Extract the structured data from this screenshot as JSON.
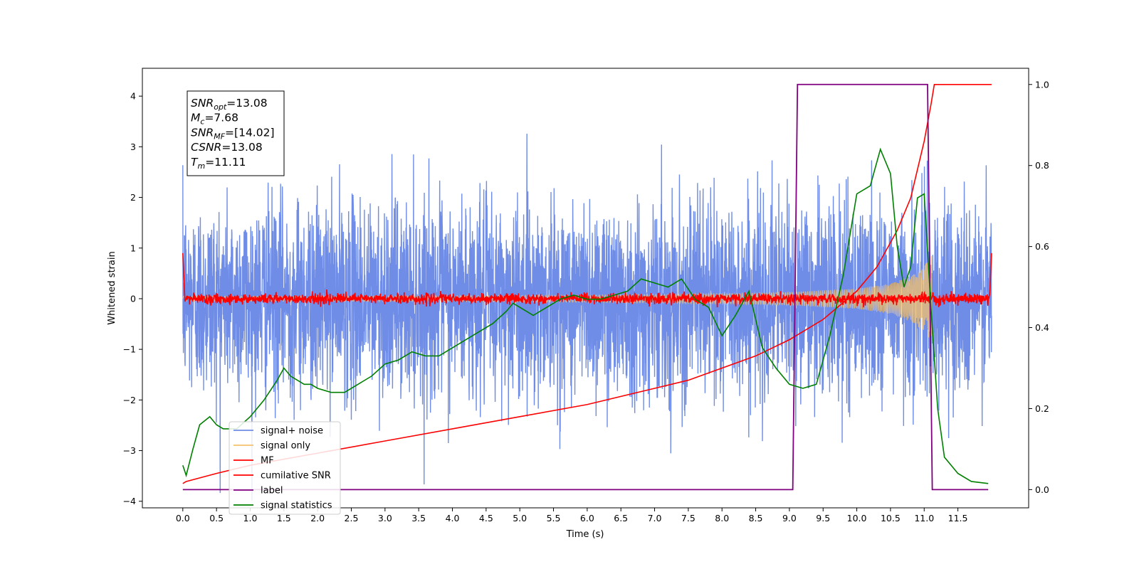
{
  "chart_data": {
    "type": "line",
    "xlabel": "Time (s)",
    "ylabel": "Whitened strain",
    "xlim": [
      -0.6,
      12.55
    ],
    "ylim": [
      -4.13,
      4.55
    ],
    "y2lim": [
      -0.045,
      1.04
    ],
    "x_ticks": [
      0.0,
      0.5,
      1.0,
      1.5,
      2.0,
      2.5,
      3.0,
      3.5,
      4.0,
      4.5,
      5.0,
      5.5,
      6.0,
      6.5,
      7.0,
      7.5,
      8.0,
      8.5,
      9.0,
      9.5,
      10.0,
      10.5,
      11.0,
      11.5
    ],
    "x_tick_labels": [
      "0.0",
      "0.5",
      "1.0",
      "1.5",
      "2.0",
      "2.5",
      "3.0",
      "3.5",
      "4.0",
      "4.5",
      "5.0",
      "5.5",
      "6.0",
      "6.5",
      "7.0",
      "7.5",
      "8.0",
      "8.5",
      "9.0",
      "9.5",
      "10.0",
      "10.5",
      "11.0",
      "11.5"
    ],
    "y_ticks": [
      -4,
      -3,
      -2,
      -1,
      0,
      1,
      2,
      3,
      4
    ],
    "y_tick_labels": [
      "−4",
      "−3",
      "−2",
      "−1",
      "0",
      "1",
      "2",
      "3",
      "4"
    ],
    "y2_ticks": [
      0.0,
      0.2,
      0.4,
      0.6,
      0.8,
      1.0
    ],
    "y2_tick_labels": [
      "0.0",
      "0.2",
      "0.4",
      "0.6",
      "0.8",
      "1.0"
    ],
    "grid": false,
    "legend_position": "lower-left",
    "series": [
      {
        "name": "signal+ noise",
        "color": "#6f8de6",
        "axis": "left",
        "x_range": [
          0.0,
          12.0
        ],
        "std": 1.0
      },
      {
        "name": "signal only",
        "color": "#f5c26b",
        "axis": "left",
        "x_range": [
          0.0,
          11.11
        ],
        "envelope": {
          "x": [
            0.0,
            2,
            4,
            6,
            8,
            9,
            10,
            10.5,
            10.8,
            11.0,
            11.11
          ],
          "amp": [
            0.05,
            0.05,
            0.06,
            0.07,
            0.1,
            0.13,
            0.2,
            0.3,
            0.45,
            0.65,
            0.85
          ]
        }
      },
      {
        "name": "MF",
        "color": "#ff0000",
        "axis": "left",
        "x_range": [
          0.0,
          12.0
        ],
        "std": 0.05
      },
      {
        "name": "cumilative SNR",
        "color": "#ff0000",
        "axis": "right",
        "x": [
          0.0,
          0.05,
          0.5,
          1,
          2,
          3,
          4,
          5,
          6,
          7,
          7.5,
          8,
          8.5,
          9,
          9.5,
          10,
          10.3,
          10.6,
          10.8,
          11.0,
          11.1,
          11.15,
          12.0
        ],
        "y": [
          0.015,
          0.02,
          0.04,
          0.06,
          0.09,
          0.12,
          0.15,
          0.18,
          0.21,
          0.25,
          0.27,
          0.3,
          0.33,
          0.37,
          0.42,
          0.49,
          0.55,
          0.64,
          0.72,
          0.86,
          0.95,
          1.0,
          1.0
        ]
      },
      {
        "name": "label",
        "color": "#800080",
        "axis": "right",
        "x": [
          0.0,
          9.05,
          9.12,
          11.05,
          11.12,
          11.95
        ],
        "y": [
          0.0,
          0.0,
          1.0,
          1.0,
          0.0,
          0.0
        ]
      },
      {
        "name": "signal statistics",
        "color": "#008000",
        "axis": "right",
        "x": [
          0.0,
          0.05,
          0.15,
          0.25,
          0.4,
          0.5,
          0.6,
          0.8,
          1.0,
          1.2,
          1.4,
          1.5,
          1.6,
          1.7,
          1.8,
          1.9,
          2.0,
          2.2,
          2.4,
          2.6,
          2.8,
          3.0,
          3.2,
          3.4,
          3.6,
          3.8,
          4.0,
          4.2,
          4.4,
          4.6,
          4.8,
          4.9,
          5.0,
          5.2,
          5.4,
          5.6,
          5.8,
          6.0,
          6.2,
          6.4,
          6.6,
          6.8,
          7.0,
          7.2,
          7.4,
          7.6,
          7.8,
          8.0,
          8.2,
          8.4,
          8.6,
          8.8,
          9.0,
          9.2,
          9.4,
          9.6,
          9.8,
          10.0,
          10.2,
          10.35,
          10.5,
          10.6,
          10.7,
          10.8,
          10.9,
          11.0,
          11.1,
          11.2,
          11.3,
          11.5,
          11.7,
          11.95
        ],
        "y": [
          0.06,
          0.035,
          0.1,
          0.16,
          0.18,
          0.16,
          0.15,
          0.15,
          0.18,
          0.22,
          0.27,
          0.3,
          0.28,
          0.27,
          0.26,
          0.26,
          0.25,
          0.24,
          0.24,
          0.26,
          0.28,
          0.31,
          0.32,
          0.34,
          0.33,
          0.33,
          0.35,
          0.37,
          0.39,
          0.41,
          0.44,
          0.46,
          0.45,
          0.43,
          0.45,
          0.47,
          0.48,
          0.47,
          0.47,
          0.48,
          0.49,
          0.52,
          0.51,
          0.5,
          0.52,
          0.47,
          0.45,
          0.38,
          0.43,
          0.49,
          0.35,
          0.3,
          0.26,
          0.25,
          0.26,
          0.38,
          0.53,
          0.73,
          0.75,
          0.84,
          0.78,
          0.6,
          0.5,
          0.55,
          0.72,
          0.73,
          0.45,
          0.2,
          0.08,
          0.04,
          0.02,
          0.015
        ]
      }
    ],
    "annotation": {
      "lines": [
        {
          "symbol": "SNR",
          "subscript": "opt",
          "value": "=13.08"
        },
        {
          "symbol": "M",
          "subscript": "c",
          "value": "=7.68"
        },
        {
          "symbol": "SNR",
          "subscript": "MF",
          "value": "=[14.02]"
        },
        {
          "symbol": "CSNR",
          "subscript": "",
          "value": "=13.08"
        },
        {
          "symbol": "T",
          "subscript": "m",
          "value": "=11.11"
        }
      ]
    }
  }
}
